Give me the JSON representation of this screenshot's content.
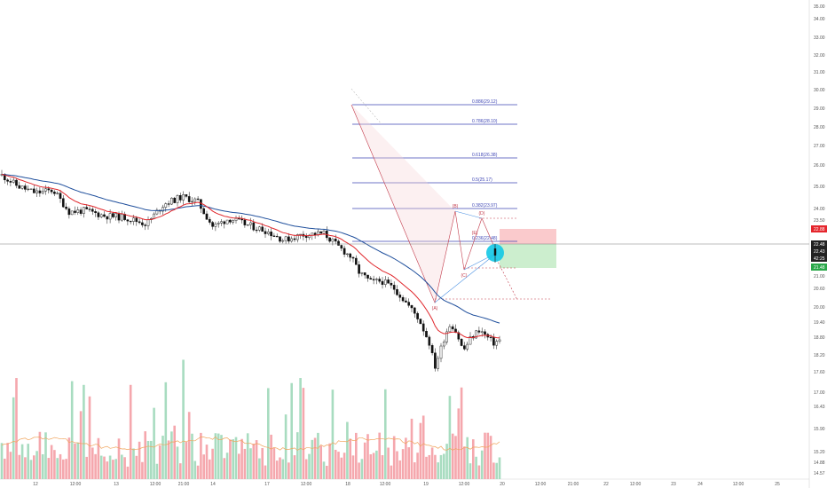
{
  "chart_data": {
    "type": "candlestick",
    "ylim": [
      14.57,
      35.5
    ],
    "price_ticks": [
      "35.00",
      "34.00",
      "33.00",
      "32.00",
      "31.00",
      "30.00",
      "29.00",
      "28.00",
      "27.00",
      "26.00",
      "25.00",
      "24.00",
      "23.50",
      "22.48",
      "22.43",
      "21.48",
      "21.00",
      "20.60",
      "20.00",
      "19.40",
      "18.80",
      "18.20",
      "17.60",
      "17.00",
      "16.43",
      "15.90",
      "15.20",
      "14.88",
      "14.57"
    ],
    "time_ticks": [
      "12",
      "12:00",
      "13",
      "12:00",
      "21:00",
      "14",
      "17",
      "12:00",
      "18",
      "12:00",
      "19",
      "12:00",
      "20",
      "12:00",
      "21:00",
      "22",
      "12:00",
      "23",
      "24",
      "12:00",
      "25",
      "12:00"
    ],
    "fib_levels": [
      {
        "ratio": "0.886",
        "label": "0.886(29.12)",
        "price": 29.12
      },
      {
        "ratio": "0.786",
        "label": "0.786(28.10)",
        "price": 28.1
      },
      {
        "ratio": "0.618",
        "label": "0.618(26.38)",
        "price": 26.38
      },
      {
        "ratio": "0.5",
        "label": "0.5(25.17)",
        "price": 25.17
      },
      {
        "ratio": "0.382",
        "label": "0.382(23.97)",
        "price": 23.97
      },
      {
        "ratio": "0.236",
        "label": "0.236(22.48)",
        "price": 22.48
      }
    ],
    "wave_labels": [
      "(A)",
      "(B)",
      "(C)",
      "(D)",
      "(E)"
    ],
    "badges": [
      {
        "label": "22.88",
        "color": "#e5262d",
        "price": 22.9
      },
      {
        "label": "22.48",
        "color": "#222222",
        "price": 22.48
      },
      {
        "label": "22.43",
        "color": "#222222",
        "price": 22.43
      },
      {
        "label": "42:25",
        "color": "#222222",
        "price": 22.15
      },
      {
        "label": "21.48",
        "color": "#2aa84a",
        "price": 21.48
      }
    ],
    "last_price": 22.48,
    "stop_zone": [
      22.48,
      23.0
    ],
    "target_zone": [
      21.48,
      22.48
    ],
    "colors": {
      "up": "#a8dcc0",
      "down": "#f5a7ad",
      "ema_fast": "#e0262b",
      "ema_slow": "#1f4f9c",
      "fib": "#3f47b5",
      "wave": "#c23a4a",
      "accent": "#00c0e0"
    }
  }
}
